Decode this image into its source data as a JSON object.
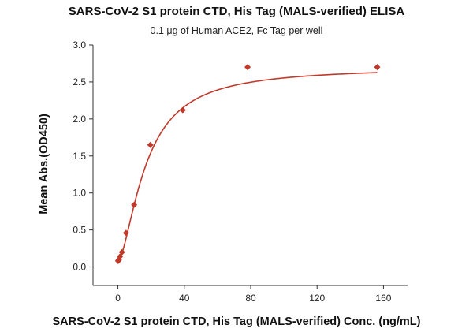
{
  "chart_data": {
    "type": "scatter",
    "title": "SARS-CoV-2 S1 protein CTD, His Tag (MALS-verified) ELISA",
    "subtitle": "0.1 μg of Human ACE2, Fc Tag per well",
    "xlabel": "SARS-CoV-2 S1 protein CTD, His Tag (MALS-verified) Conc. (ng/mL)",
    "ylabel": "Mean Abs.(OD450)",
    "xlim": [
      -15,
      175
    ],
    "ylim": [
      -0.25,
      3.0
    ],
    "x_ticks": [
      0,
      40,
      80,
      120,
      160
    ],
    "y_ticks": [
      0.0,
      0.5,
      1.0,
      1.5,
      2.0,
      2.5,
      3.0
    ],
    "x_tick_labels": [
      "0",
      "40",
      "80",
      "120",
      "160"
    ],
    "y_tick_labels": [
      "0.0",
      "0.5",
      "1.0",
      "1.5",
      "2.0",
      "2.5",
      "3.0"
    ],
    "grid": false,
    "colors": {
      "points": "#c0392b",
      "fit": "#c0392b"
    },
    "series": [
      {
        "marker": "diamond",
        "x": [
          0.15,
          0.3,
          0.61,
          1.22,
          2.44,
          4.88,
          9.77,
          19.53,
          39.06,
          78.13,
          156.25
        ],
        "y": [
          0.08,
          0.09,
          0.1,
          0.14,
          0.2,
          0.46,
          0.84,
          1.65,
          2.12,
          2.7,
          2.7
        ]
      }
    ],
    "fit_curve": {
      "kind": "4PL",
      "bottom": 0.07,
      "top": 2.7,
      "ec50": 17,
      "hill": 1.6
    }
  }
}
